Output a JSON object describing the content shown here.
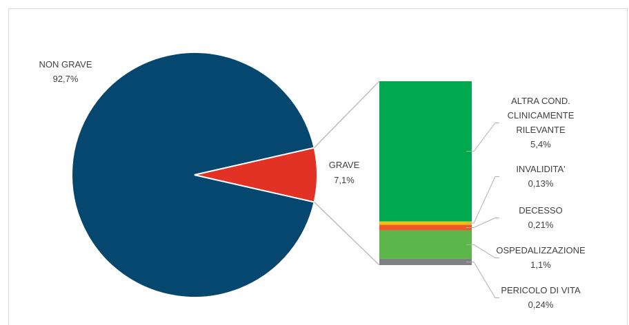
{
  "chart_data": {
    "type": "pie",
    "subtype": "bar-of-pie",
    "pie": {
      "slices": [
        {
          "label": "NON GRAVE",
          "value_label": "92,7%",
          "value": 92.7,
          "color": "#05476F"
        },
        {
          "label": "GRAVE",
          "value_label": "7,1%",
          "value": 7.1,
          "color": "#E23125"
        }
      ]
    },
    "bar": {
      "segments": [
        {
          "label_lines": [
            "ALTRA COND.",
            "CLINICAMENTE",
            "RILEVANTE"
          ],
          "value_label": "5,4%",
          "value": 5.4,
          "color": "#00A84F"
        },
        {
          "label_lines": [
            "INVALIDITA'"
          ],
          "value_label": "0,13%",
          "value": 0.13,
          "color": "#F0C010"
        },
        {
          "label_lines": [
            "DECESSO"
          ],
          "value_label": "0,21%",
          "value": 0.21,
          "color": "#F0572A"
        },
        {
          "label_lines": [
            "OSPEDALIZZAZIONE"
          ],
          "value_label": "1,1%",
          "value": 1.1,
          "color": "#5DB64A"
        },
        {
          "label_lines": [
            "PERICOLO DI VITA"
          ],
          "value_label": "0,24%",
          "value": 0.24,
          "color": "#808080"
        }
      ]
    },
    "connector_color": "#b0b0b0",
    "label_color": "#404040"
  }
}
